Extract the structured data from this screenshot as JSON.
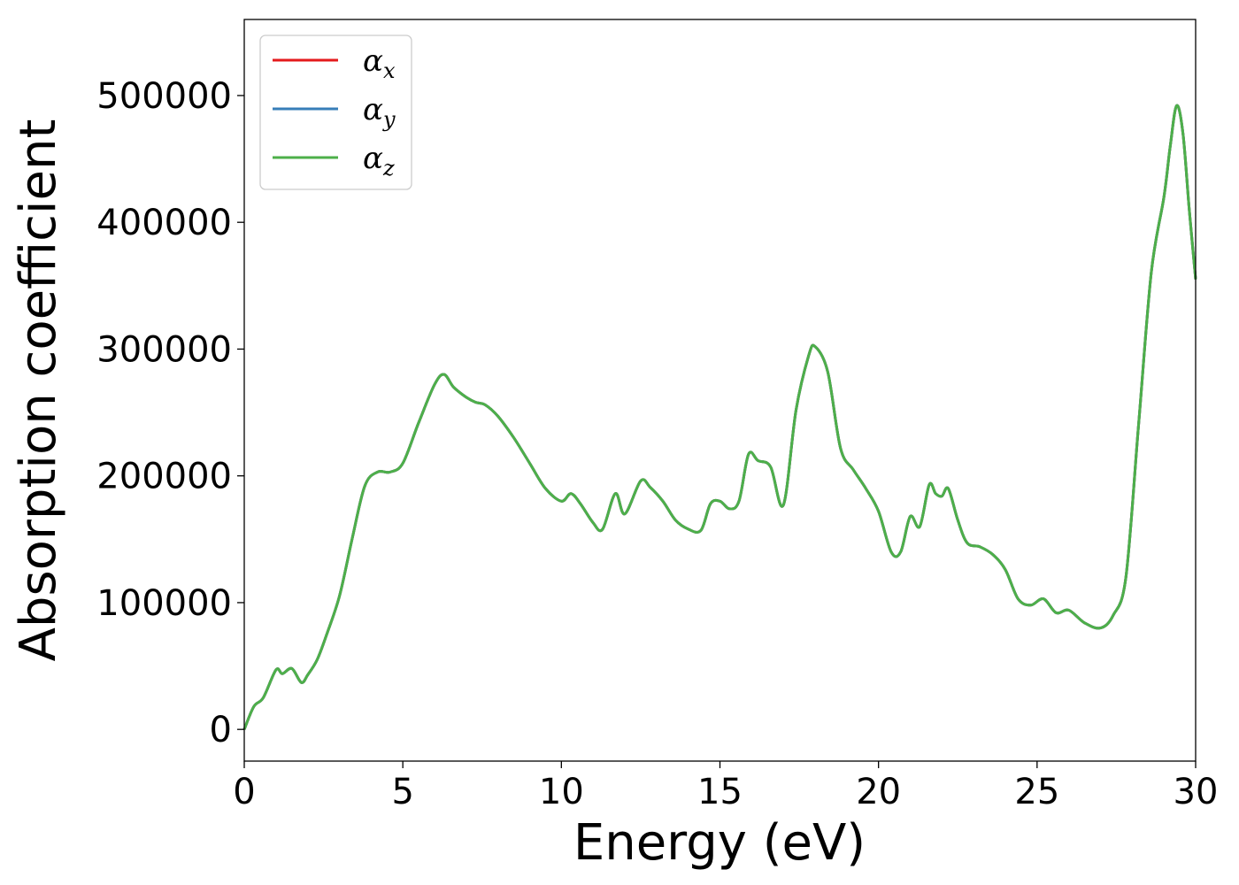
{
  "chart_data": {
    "type": "line",
    "xlabel": "Energy (eV)",
    "ylabel": "Absorption coefficient",
    "xlim": [
      0,
      30
    ],
    "ylim": [
      -25000,
      560000
    ],
    "x_ticks": [
      "0",
      "5",
      "10",
      "15",
      "20",
      "25",
      "30"
    ],
    "y_ticks": [
      "0",
      "100000",
      "200000",
      "300000",
      "400000",
      "500000"
    ],
    "grid": false,
    "legend_position": "top-left",
    "series": [
      {
        "name": "α",
        "subscript": "x",
        "color": "#e41a1c"
      },
      {
        "name": "α",
        "subscript": "y",
        "color": "#377eb8"
      },
      {
        "name": "α",
        "subscript": "z",
        "color": "#4daf4a"
      }
    ],
    "note_identical_series": true,
    "x": [
      0.0,
      0.3,
      0.6,
      1.0,
      1.2,
      1.5,
      1.8,
      2.0,
      2.3,
      2.6,
      3.0,
      3.4,
      3.8,
      4.2,
      4.6,
      5.0,
      5.5,
      6.0,
      6.3,
      6.6,
      7.0,
      7.3,
      7.6,
      8.0,
      8.5,
      9.0,
      9.5,
      10.0,
      10.3,
      10.6,
      11.0,
      11.3,
      11.7,
      12.0,
      12.5,
      12.8,
      13.2,
      13.6,
      14.0,
      14.4,
      14.7,
      15.0,
      15.3,
      15.6,
      15.9,
      16.2,
      16.6,
      17.0,
      17.4,
      17.8,
      18.0,
      18.4,
      18.8,
      19.2,
      19.6,
      20.0,
      20.4,
      20.7,
      21.0,
      21.3,
      21.6,
      21.8,
      22.0,
      22.2,
      22.5,
      22.8,
      23.2,
      23.6,
      24.0,
      24.4,
      24.8,
      25.2,
      25.6,
      26.0,
      26.5,
      27.0,
      27.4,
      27.8,
      28.2,
      28.6,
      29.0,
      29.2,
      29.4,
      29.6,
      29.8,
      30.0
    ],
    "values": [
      0,
      18000,
      25000,
      47000,
      44000,
      48000,
      37000,
      43000,
      55000,
      75000,
      105000,
      150000,
      192000,
      203000,
      203000,
      210000,
      242000,
      272000,
      280000,
      270000,
      262000,
      258000,
      256000,
      247000,
      230000,
      210000,
      190000,
      180000,
      186000,
      178000,
      163000,
      158000,
      186000,
      170000,
      196000,
      191000,
      180000,
      165000,
      158000,
      157000,
      178000,
      180000,
      174000,
      180000,
      217000,
      212000,
      207000,
      177000,
      252000,
      295000,
      302000,
      282000,
      222000,
      205000,
      190000,
      172000,
      140000,
      140000,
      168000,
      160000,
      193000,
      186000,
      184000,
      190000,
      165000,
      147000,
      144000,
      138000,
      126000,
      103000,
      98000,
      103000,
      92000,
      94000,
      84000,
      80000,
      90000,
      120000,
      240000,
      360000,
      420000,
      460000,
      492000,
      470000,
      410000,
      355000
    ]
  }
}
